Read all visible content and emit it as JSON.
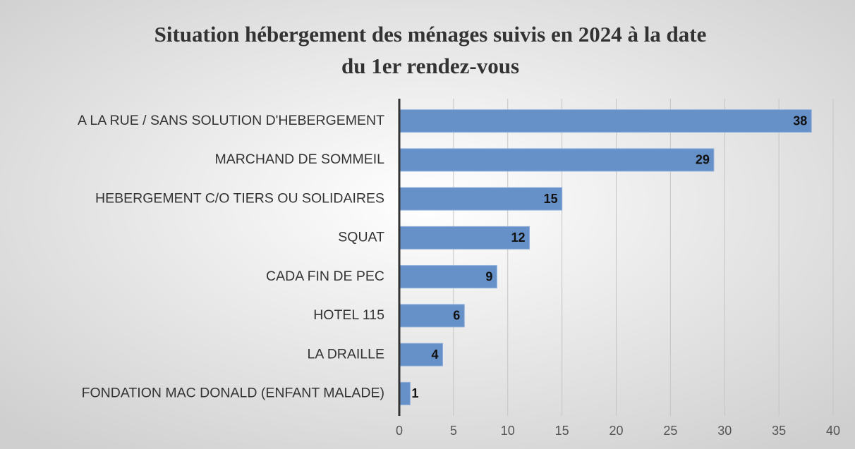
{
  "chart_data": {
    "type": "bar",
    "orientation": "horizontal",
    "title": [
      "Situation hébergement des ménages suivis en 2024 à la date",
      "du 1er rendez-vous"
    ],
    "categories": [
      "A LA RUE / SANS SOLUTION D'HEBERGEMENT",
      "MARCHAND DE SOMMEIL",
      "HEBERGEMENT C/O TIERS OU SOLIDAIRES",
      "SQUAT",
      "CADA FIN DE PEC",
      "HOTEL 115",
      "LA DRAILLE",
      "FONDATION MAC DONALD (ENFANT MALADE)"
    ],
    "values": [
      38,
      29,
      15,
      12,
      9,
      6,
      4,
      1
    ],
    "color": "#6690c8",
    "xlim": [
      0,
      40
    ],
    "xticks": [
      0,
      5,
      10,
      15,
      20,
      25,
      30,
      35,
      40
    ],
    "grid": true
  }
}
